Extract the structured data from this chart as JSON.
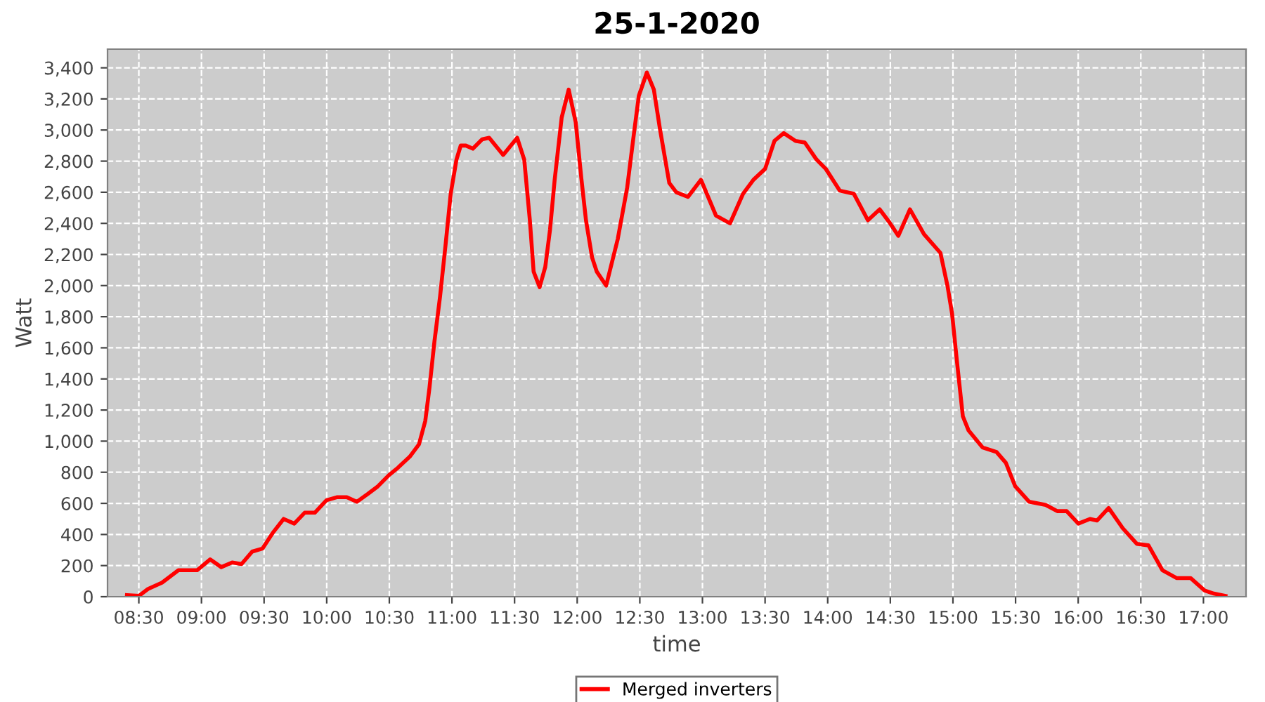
{
  "chart_data": {
    "type": "line",
    "title": "25-1-2020",
    "xlabel": "time",
    "ylabel": "Watt",
    "xlim": [
      8.25,
      17.34
    ],
    "ylim": [
      0,
      3520
    ],
    "xticks": [
      {
        "value": 8.5,
        "label": "08:30"
      },
      {
        "value": 9,
        "label": "09:00"
      },
      {
        "value": 9.5,
        "label": "09:30"
      },
      {
        "value": 10,
        "label": "10:00"
      },
      {
        "value": 10.5,
        "label": "10:30"
      },
      {
        "value": 11,
        "label": "11:00"
      },
      {
        "value": 11.5,
        "label": "11:30"
      },
      {
        "value": 12,
        "label": "12:00"
      },
      {
        "value": 12.5,
        "label": "12:30"
      },
      {
        "value": 13,
        "label": "13:00"
      },
      {
        "value": 13.5,
        "label": "13:30"
      },
      {
        "value": 14,
        "label": "14:00"
      },
      {
        "value": 14.5,
        "label": "14:30"
      },
      {
        "value": 15,
        "label": "15:00"
      },
      {
        "value": 15.5,
        "label": "15:30"
      },
      {
        "value": 16,
        "label": "16:00"
      },
      {
        "value": 16.5,
        "label": "16:30"
      },
      {
        "value": 17,
        "label": "17:00"
      }
    ],
    "yticks": [
      0,
      200,
      400,
      600,
      800,
      {
        "value": 1000,
        "label": "1,000"
      },
      {
        "value": 1200,
        "label": "1,200"
      },
      {
        "value": 1400,
        "label": "1,400"
      },
      {
        "value": 1600,
        "label": "1,600"
      },
      {
        "value": 1800,
        "label": "1,800"
      },
      {
        "value": 2000,
        "label": "2,000"
      },
      {
        "value": 2200,
        "label": "2,200"
      },
      {
        "value": 2400,
        "label": "2,400"
      },
      {
        "value": 2600,
        "label": "2,600"
      },
      {
        "value": 2800,
        "label": "2,800"
      },
      {
        "value": 3000,
        "label": "3,000"
      },
      {
        "value": 3200,
        "label": "3,200"
      },
      {
        "value": 3400,
        "label": "3,400"
      }
    ],
    "grid": true,
    "legend": "bottom",
    "marker": "none",
    "line_style": "solid",
    "series": [
      {
        "name": "Merged inverters",
        "color": "#ff0000",
        "x": [
          8.405,
          8.5,
          8.573,
          8.685,
          8.816,
          8.965,
          9.069,
          9.158,
          9.245,
          9.32,
          9.405,
          9.488,
          9.569,
          9.656,
          9.741,
          9.824,
          9.905,
          9.998,
          10.085,
          10.16,
          10.241,
          10.327,
          10.409,
          10.495,
          10.57,
          10.663,
          10.737,
          10.787,
          10.82,
          10.86,
          10.905,
          10.95,
          10.99,
          11.036,
          11.07,
          11.111,
          11.167,
          11.241,
          11.297,
          11.409,
          11.521,
          11.577,
          11.622,
          11.652,
          11.7,
          11.745,
          11.783,
          11.82,
          11.876,
          11.932,
          11.988,
          12.033,
          12.07,
          12.119,
          12.156,
          12.231,
          12.324,
          12.399,
          12.455,
          12.492,
          12.556,
          12.612,
          12.66,
          12.735,
          12.791,
          12.884,
          12.988,
          13.108,
          13.22,
          13.324,
          13.407,
          13.5,
          13.575,
          13.649,
          13.743,
          13.817,
          13.911,
          13.985,
          14.097,
          14.209,
          14.321,
          14.415,
          14.49,
          14.564,
          14.657,
          14.769,
          14.9,
          14.956,
          14.993,
          15.031,
          15.079,
          15.124,
          15.236,
          15.348,
          15.423,
          15.497,
          15.609,
          15.74,
          15.833,
          15.908,
          16.001,
          16.094,
          16.151,
          16.243,
          16.356,
          16.468,
          16.561,
          16.673,
          16.785,
          16.897,
          17.009,
          17.083,
          17.176
        ],
        "values": [
          10,
          5,
          50,
          90,
          170,
          170,
          240,
          190,
          220,
          210,
          290,
          310,
          410,
          500,
          470,
          540,
          540,
          620,
          640,
          640,
          610,
          660,
          710,
          780,
          830,
          900,
          980,
          1130,
          1340,
          1640,
          1930,
          2270,
          2590,
          2810,
          2900,
          2900,
          2880,
          2940,
          2950,
          2840,
          2950,
          2810,
          2420,
          2090,
          1990,
          2120,
          2360,
          2680,
          3080,
          3260,
          3050,
          2690,
          2420,
          2180,
          2090,
          2000,
          2300,
          2630,
          2990,
          3220,
          3370,
          3260,
          3010,
          2660,
          2600,
          2570,
          2680,
          2450,
          2400,
          2590,
          2680,
          2750,
          2930,
          2980,
          2930,
          2920,
          2810,
          2750,
          2610,
          2590,
          2420,
          2490,
          2410,
          2320,
          2490,
          2330,
          2210,
          2000,
          1820,
          1520,
          1160,
          1070,
          960,
          930,
          860,
          710,
          610,
          590,
          550,
          550,
          470,
          500,
          490,
          570,
          440,
          340,
          330,
          170,
          120,
          120,
          40,
          20,
          5
        ]
      }
    ]
  }
}
